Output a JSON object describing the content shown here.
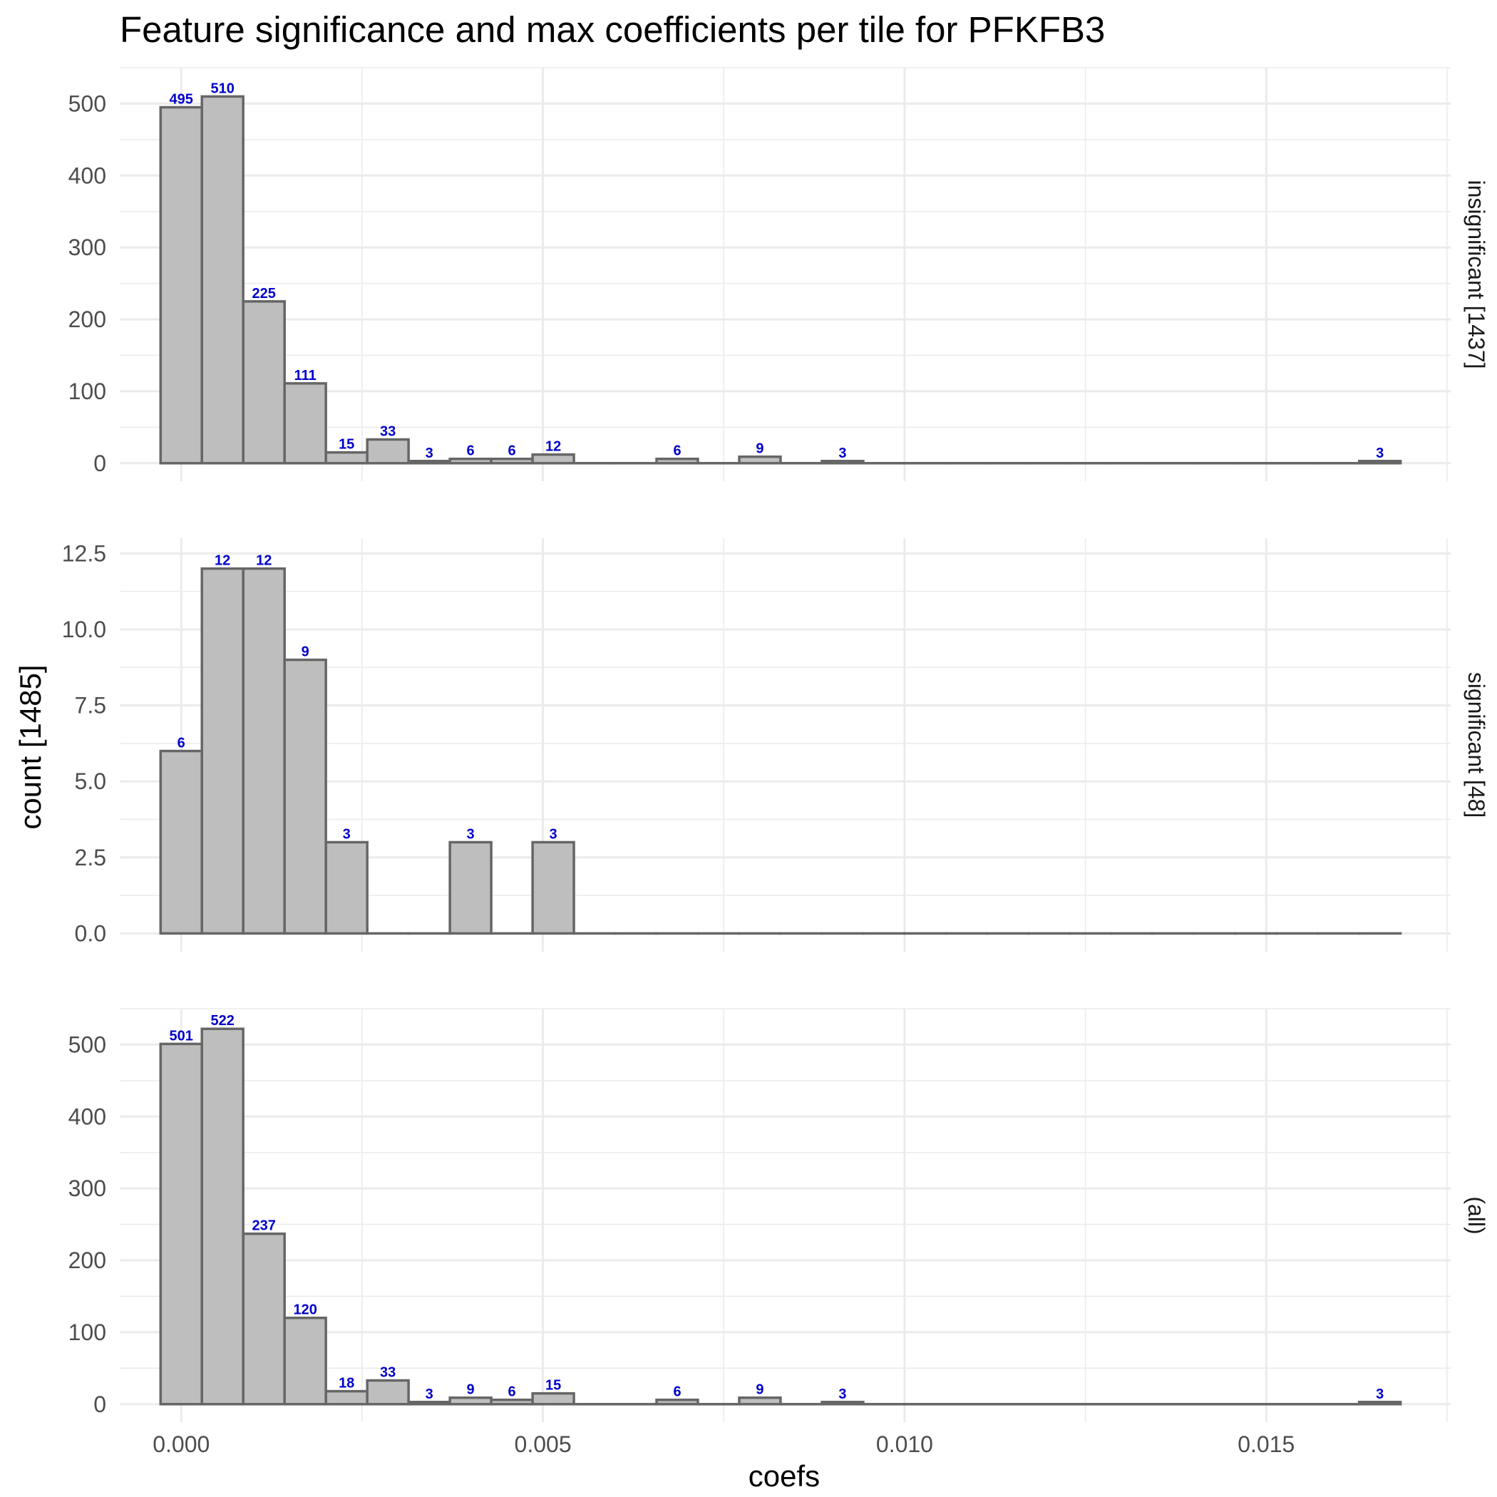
{
  "chart_data": {
    "type": "bar",
    "title": "Feature significance and max coefficients per tile for PFKFB3",
    "xlabel": "coefs",
    "ylabel": "count [1485]",
    "bin_width": 0.000571,
    "xlim": [
      -0.00085,
      0.01755
    ],
    "x_ticks": [
      0.0,
      0.005,
      0.01,
      0.015
    ],
    "x_tick_labels": [
      "0.000",
      "0.005",
      "0.010",
      "0.015"
    ],
    "grid": true,
    "colors": {
      "bar_fill": "#bebebe",
      "bar_stroke": "#666666",
      "data_label": "#0000cc"
    },
    "bin_centers": [
      0.0,
      0.000571,
      0.001143,
      0.001714,
      0.002286,
      0.002857,
      0.003429,
      0.004,
      0.004571,
      0.005143,
      0.005714,
      0.006286,
      0.006857,
      0.007429,
      0.008,
      0.008571,
      0.009143,
      0.009714,
      0.010286,
      0.010857,
      0.011429,
      0.012,
      0.012571,
      0.013143,
      0.013714,
      0.014286,
      0.014857,
      0.015429,
      0.016,
      0.016571
    ],
    "panels": [
      {
        "strip": "insignificant [1437]",
        "ylim": [
          -25,
          550
        ],
        "y_ticks": [
          0,
          100,
          200,
          300,
          400,
          500
        ],
        "y_tick_labels": [
          "0",
          "100",
          "200",
          "300",
          "400",
          "500"
        ],
        "counts": [
          495,
          510,
          225,
          111,
          15,
          33,
          3,
          6,
          6,
          12,
          0,
          0,
          6,
          0,
          9,
          0,
          3,
          0,
          0,
          0,
          0,
          0,
          0,
          0,
          0,
          0,
          0,
          0,
          0,
          3
        ]
      },
      {
        "strip": "significant [48]",
        "ylim": [
          -0.6,
          13.0
        ],
        "y_ticks": [
          0.0,
          2.5,
          5.0,
          7.5,
          10.0,
          12.5
        ],
        "y_tick_labels": [
          "0.0",
          "2.5",
          "5.0",
          "7.5",
          "10.0",
          "12.5"
        ],
        "counts": [
          6,
          12,
          12,
          9,
          3,
          0,
          0,
          3,
          0,
          3,
          0,
          0,
          0,
          0,
          0,
          0,
          0,
          0,
          0,
          0,
          0,
          0,
          0,
          0,
          0,
          0,
          0,
          0,
          0,
          0
        ]
      },
      {
        "strip": "(all)",
        "ylim": [
          -25,
          550
        ],
        "y_ticks": [
          0,
          100,
          200,
          300,
          400,
          500
        ],
        "y_tick_labels": [
          "0",
          "100",
          "200",
          "300",
          "400",
          "500"
        ],
        "counts": [
          501,
          522,
          237,
          120,
          18,
          33,
          3,
          9,
          6,
          15,
          0,
          0,
          6,
          0,
          9,
          0,
          3,
          0,
          0,
          0,
          0,
          0,
          0,
          0,
          0,
          0,
          0,
          0,
          0,
          3
        ]
      }
    ]
  }
}
